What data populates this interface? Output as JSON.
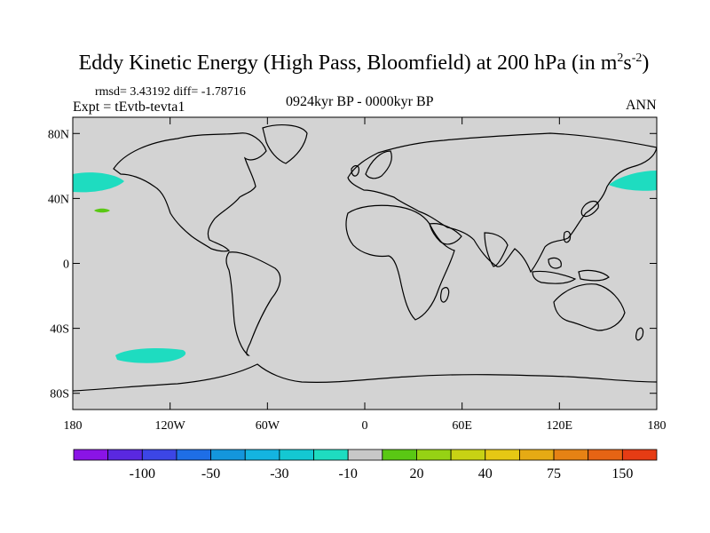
{
  "title": {
    "main": "Eddy Kinetic Energy (High Pass, Bloomfield) at 200 hPa (in m",
    "sup1": "2",
    "mid": "s",
    "sup2": "-2",
    "end": ")"
  },
  "stats": {
    "rmsd": "rmsd= 3.43192 diff= -1.78716"
  },
  "expt": "Expt = tEvtb-tevta1",
  "period": "0924kyr BP - 0000kyr BP",
  "season": "ANN",
  "lat_labels": [
    {
      "text": "80N",
      "lat": 80
    },
    {
      "text": "40N",
      "lat": 40
    },
    {
      "text": "0",
      "lat": 0
    },
    {
      "text": "40S",
      "lat": -40
    },
    {
      "text": "80S",
      "lat": -80
    }
  ],
  "lon_labels": [
    {
      "text": "180",
      "lon": -180
    },
    {
      "text": "120W",
      "lon": -120
    },
    {
      "text": "60W",
      "lon": -60
    },
    {
      "text": "0",
      "lon": 0
    },
    {
      "text": "60E",
      "lon": 60
    },
    {
      "text": "120E",
      "lon": 120
    },
    {
      "text": "180",
      "lon": 180
    }
  ],
  "colorbar": {
    "colors": [
      "#8a14e6",
      "#5a28e0",
      "#3c46e6",
      "#1e6ee6",
      "#1496dc",
      "#14b4e0",
      "#14c8d2",
      "#1edcc0",
      "#c8c8c8",
      "#5ac814",
      "#96d214",
      "#c8d214",
      "#e6c814",
      "#e6aa14",
      "#e68214",
      "#e66414",
      "#e63c14"
    ],
    "labels": [
      {
        "text": "-100",
        "boundary": 2
      },
      {
        "text": "-50",
        "boundary": 4
      },
      {
        "text": "-30",
        "boundary": 6
      },
      {
        "text": "-10",
        "boundary": 8
      },
      {
        "text": "20",
        "boundary": 10
      },
      {
        "text": "40",
        "boundary": 12
      },
      {
        "text": "75",
        "boundary": 14
      },
      {
        "text": "150",
        "boundary": 16
      }
    ]
  },
  "colors": {
    "ocean": "#d3d3d3",
    "anomaly_neg": "#1edcc0",
    "anomaly_pos": "#5ac814",
    "coast": "#000000"
  }
}
